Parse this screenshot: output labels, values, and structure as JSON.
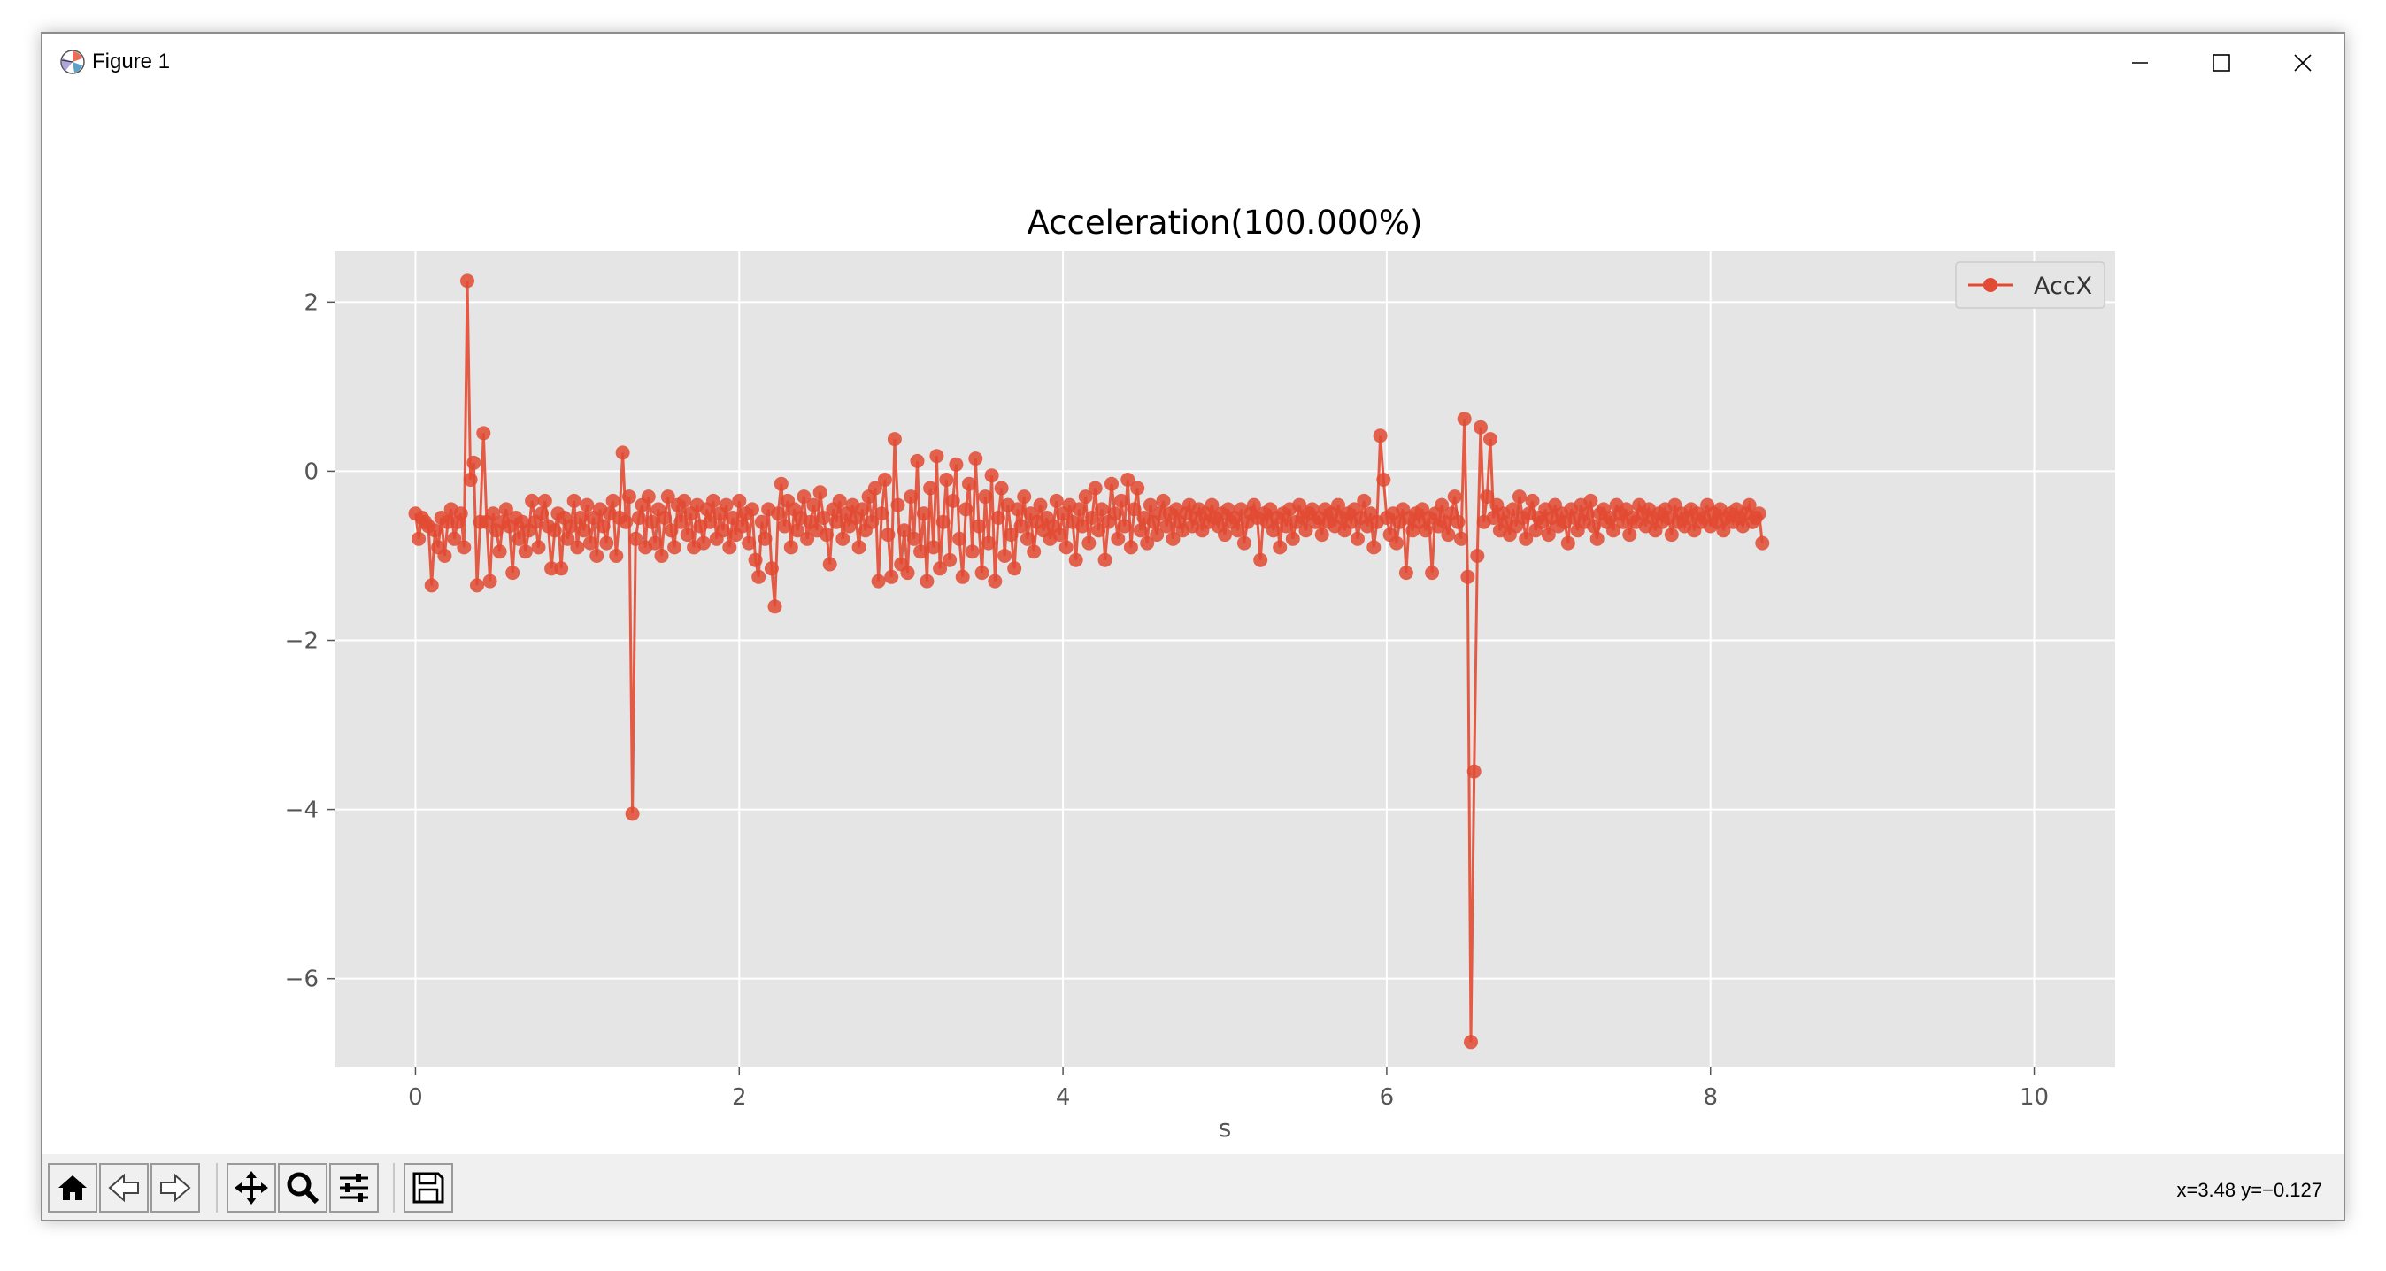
{
  "window": {
    "title": "Figure 1",
    "icons": {
      "app": "matplotlib-icon",
      "minimize": "minimize-icon",
      "maximize": "maximize-icon",
      "close": "close-icon"
    }
  },
  "toolbar": {
    "buttons": [
      {
        "name": "home-button",
        "icon": "home-icon"
      },
      {
        "name": "back-button",
        "icon": "back-arrow-icon"
      },
      {
        "name": "forward-button",
        "icon": "forward-arrow-icon"
      },
      {
        "name": "pan-button",
        "icon": "move-icon"
      },
      {
        "name": "zoom-button",
        "icon": "magnifier-icon"
      },
      {
        "name": "configure-subplots-button",
        "icon": "sliders-icon"
      },
      {
        "name": "save-button",
        "icon": "floppy-disk-icon"
      }
    ],
    "coords": "x=3.48 y=−0.127"
  },
  "colors": {
    "series": "#e24a33",
    "axes_bg": "#e5e5e5",
    "grid": "#ffffff",
    "tick_text": "#555555"
  },
  "chart_data": {
    "type": "line",
    "title": "Acceleration(100.000%)",
    "xlabel": "s",
    "ylabel": "",
    "xlim": [
      -0.5,
      10.5
    ],
    "ylim": [
      -7.05,
      2.6
    ],
    "xticks": [
      0,
      2,
      4,
      6,
      8,
      10
    ],
    "yticks": [
      2,
      0,
      -2,
      -4,
      -6
    ],
    "xtick_labels": [
      "0",
      "2",
      "4",
      "6",
      "8",
      "10"
    ],
    "ytick_labels": [
      "2",
      "0",
      "−2",
      "−4",
      "−6"
    ],
    "grid": true,
    "legend": "top-right",
    "series": [
      {
        "name": "AccX",
        "marker": "circle",
        "x_start": 0,
        "x_step": 0.02,
        "values": [
          -0.5,
          -0.8,
          -0.55,
          -0.6,
          -0.65,
          -1.35,
          -0.7,
          -0.9,
          -0.55,
          -1.0,
          -0.6,
          -0.45,
          -0.8,
          -0.6,
          -0.5,
          -0.9,
          2.25,
          -0.1,
          0.1,
          -1.35,
          -0.6,
          0.45,
          -0.6,
          -1.3,
          -0.5,
          -0.7,
          -0.95,
          -0.6,
          -0.45,
          -0.65,
          -1.2,
          -0.55,
          -0.8,
          -0.6,
          -0.95,
          -0.7,
          -0.35,
          -0.6,
          -0.9,
          -0.5,
          -0.35,
          -0.65,
          -1.15,
          -0.7,
          -0.5,
          -1.15,
          -0.55,
          -0.8,
          -0.65,
          -0.35,
          -0.9,
          -0.55,
          -0.7,
          -0.4,
          -0.85,
          -0.55,
          -1.0,
          -0.45,
          -0.65,
          -0.85,
          -0.5,
          -0.35,
          -1.0,
          -0.55,
          0.22,
          -0.6,
          -0.3,
          -4.05,
          -0.8,
          -0.55,
          -0.4,
          -0.9,
          -0.3,
          -0.6,
          -0.85,
          -0.45,
          -1.0,
          -0.55,
          -0.3,
          -0.7,
          -0.9,
          -0.4,
          -0.6,
          -0.35,
          -0.75,
          -0.5,
          -0.9,
          -0.4,
          -0.65,
          -0.85,
          -0.45,
          -0.6,
          -0.35,
          -0.8,
          -0.5,
          -0.7,
          -0.4,
          -0.9,
          -0.55,
          -0.75,
          -0.35,
          -0.65,
          -0.5,
          -0.85,
          -0.45,
          -1.05,
          -1.25,
          -0.6,
          -0.8,
          -0.45,
          -1.15,
          -1.6,
          -0.5,
          -0.15,
          -0.65,
          -0.35,
          -0.9,
          -0.45,
          -0.7,
          -0.55,
          -0.3,
          -0.8,
          -0.6,
          -0.4,
          -0.7,
          -0.25,
          -0.55,
          -0.75,
          -1.1,
          -0.45,
          -0.6,
          -0.35,
          -0.8,
          -0.5,
          -0.65,
          -0.4,
          -0.55,
          -0.9,
          -0.45,
          -0.7,
          -0.3,
          -0.6,
          -0.2,
          -1.3,
          -0.5,
          -0.1,
          -0.75,
          -1.25,
          0.38,
          -0.4,
          -1.1,
          -0.7,
          -1.2,
          -0.3,
          -0.8,
          0.12,
          -0.95,
          -0.5,
          -1.3,
          -0.2,
          -0.9,
          0.18,
          -1.15,
          -0.6,
          -0.1,
          -1.05,
          -0.35,
          0.08,
          -0.8,
          -1.25,
          -0.45,
          -0.15,
          -0.95,
          0.15,
          -0.65,
          -1.2,
          -0.3,
          -0.85,
          -0.05,
          -1.3,
          -0.55,
          -0.2,
          -1.0,
          -0.4,
          -0.75,
          -1.15,
          -0.45,
          -0.65,
          -0.3,
          -0.8,
          -0.5,
          -0.95,
          -0.6,
          -0.4,
          -0.7,
          -0.55,
          -0.8,
          -0.65,
          -0.35,
          -0.75,
          -0.5,
          -0.9,
          -0.4,
          -0.6,
          -1.05,
          -0.45,
          -0.65,
          -0.3,
          -0.85,
          -0.55,
          -0.2,
          -0.7,
          -0.45,
          -1.05,
          -0.6,
          -0.15,
          -0.5,
          -0.8,
          -0.35,
          -0.65,
          -0.1,
          -0.9,
          -0.45,
          -0.2,
          -0.7,
          -0.55,
          -0.85,
          -0.4,
          -0.6,
          -0.75,
          -0.5,
          -0.35,
          -0.65,
          -0.5,
          -0.8,
          -0.45,
          -0.6,
          -0.7,
          -0.5,
          -0.4,
          -0.65,
          -0.55,
          -0.45,
          -0.7,
          -0.5,
          -0.6,
          -0.4,
          -0.55,
          -0.65,
          -0.5,
          -0.75,
          -0.45,
          -0.6,
          -0.55,
          -0.7,
          -0.45,
          -0.85,
          -0.6,
          -0.5,
          -0.4,
          -0.55,
          -1.05,
          -0.5,
          -0.6,
          -0.45,
          -0.7,
          -0.55,
          -0.9,
          -0.5,
          -0.65,
          -0.45,
          -0.8,
          -0.6,
          -0.4,
          -0.55,
          -0.7,
          -0.5,
          -0.45,
          -0.6,
          -0.55,
          -0.75,
          -0.45,
          -0.6,
          -0.5,
          -0.65,
          -0.4,
          -0.55,
          -0.7,
          -0.5,
          -0.6,
          -0.45,
          -0.8,
          -0.55,
          -0.35,
          -0.65,
          -0.5,
          -0.9,
          -0.6,
          0.42,
          -0.1,
          -0.55,
          -0.75,
          -0.5,
          -0.85,
          -0.6,
          -0.45,
          -1.2,
          -0.55,
          -0.7,
          -0.5,
          -0.6,
          -0.45,
          -0.7,
          -0.55,
          -1.2,
          -0.5,
          -0.65,
          -0.4,
          -0.6,
          -0.75,
          -0.5,
          -0.3,
          -0.6,
          -0.8,
          0.62,
          -1.25,
          -6.75,
          -3.55,
          -1.0,
          0.52,
          -0.6,
          -0.3,
          0.38,
          -0.55,
          -0.4,
          -0.7,
          -0.5,
          -0.6,
          -0.75,
          -0.45,
          -0.65,
          -0.3,
          -0.55,
          -0.8,
          -0.5,
          -0.35,
          -0.7,
          -0.55,
          -0.6,
          -0.45,
          -0.75,
          -0.55,
          -0.4,
          -0.65,
          -0.5,
          -0.6,
          -0.85,
          -0.45,
          -0.55,
          -0.7,
          -0.4,
          -0.6,
          -0.5,
          -0.35,
          -0.65,
          -0.8,
          -0.5,
          -0.45,
          -0.6,
          -0.55,
          -0.7,
          -0.4,
          -0.5,
          -0.6,
          -0.45,
          -0.75,
          -0.55,
          -0.6,
          -0.4,
          -0.5,
          -0.65,
          -0.45,
          -0.55,
          -0.7,
          -0.5,
          -0.6,
          -0.45,
          -0.55,
          -0.75,
          -0.4,
          -0.6,
          -0.5,
          -0.65,
          -0.55,
          -0.45,
          -0.7,
          -0.5,
          -0.6,
          -0.55,
          -0.4,
          -0.65,
          -0.5,
          -0.6,
          -0.45,
          -0.7,
          -0.55,
          -0.5,
          -0.6,
          -0.45,
          -0.55,
          -0.65,
          -0.5,
          -0.4,
          -0.6,
          -0.55,
          -0.5,
          -0.85
        ]
      }
    ]
  }
}
